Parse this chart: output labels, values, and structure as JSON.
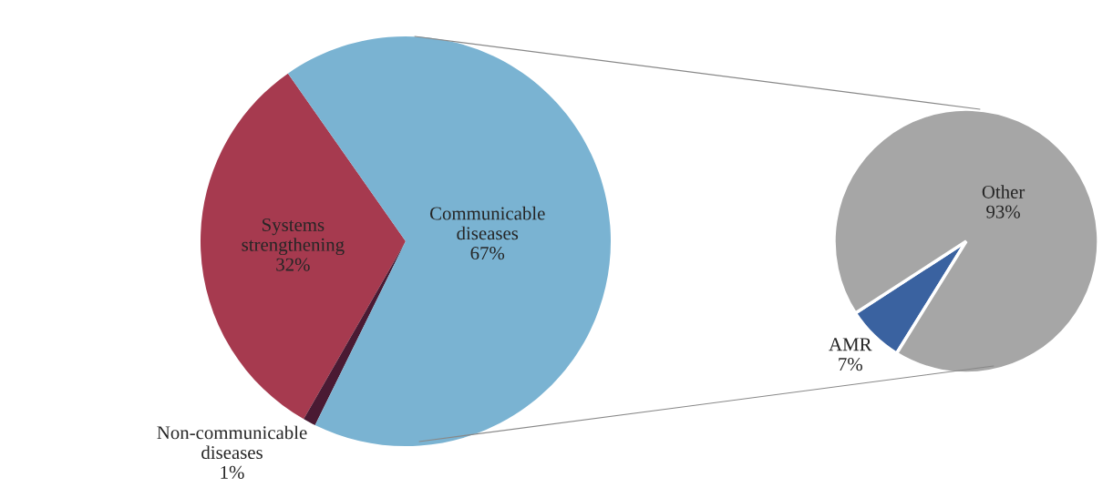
{
  "chart_data": [
    {
      "type": "pie",
      "categories": [
        "Systems\nstrengthening",
        "Non-communicable\ndiseases",
        "Communicable\ndiseases"
      ],
      "values": [
        32,
        1,
        67
      ],
      "value_labels": [
        "32%",
        "1%",
        "67%"
      ],
      "colors": [
        "#a63a4f",
        "#4a1a33",
        "#7ab3d2"
      ]
    },
    {
      "type": "pie",
      "categories": [
        "AMR",
        "Other"
      ],
      "values": [
        7,
        93
      ],
      "value_labels": [
        "7%",
        "93%"
      ],
      "colors": [
        "#3a62a0",
        "#a6a6a6"
      ]
    }
  ]
}
